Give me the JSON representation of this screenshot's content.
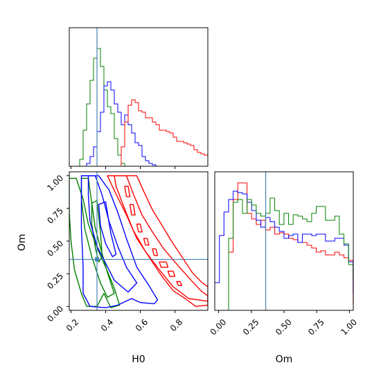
{
  "chart_data": {
    "type": "corner",
    "parameters": [
      "H0",
      "Om"
    ],
    "truth": {
      "H0": 0.35,
      "Om": 0.36
    },
    "truth_color": "#4682b4",
    "series_colors": {
      "red": "#ff0000",
      "blue": "#0000ff",
      "green": "#008000"
    },
    "axes": {
      "H0": {
        "label": "H0",
        "range": [
          0.19,
          0.99
        ],
        "ticks": [
          0.2,
          0.4,
          0.6,
          0.8
        ],
        "tick_labels": [
          "0.2",
          "0.4",
          "0.6",
          "0.8"
        ]
      },
      "Om": {
        "label": "Om",
        "range": [
          -0.03,
          1.03
        ],
        "ticks": [
          0.0,
          0.25,
          0.5,
          0.75,
          1.0
        ],
        "tick_labels": [
          "0.00",
          "0.25",
          "0.50",
          "0.75",
          "1.00"
        ]
      }
    },
    "hist_H0": {
      "bins_start": 0.19,
      "bin_width": 0.02,
      "ymax": 1.0,
      "series": [
        {
          "color": "#008000",
          "values": [
            0.0,
            0.0,
            0.0,
            0.05,
            0.26,
            0.45,
            0.62,
            0.78,
            0.85,
            0.72,
            0.55,
            0.43,
            0.38,
            0.2,
            0.08,
            0.02,
            0.0,
            0.0,
            0.0,
            0.0,
            0.0,
            0.0,
            0.0,
            0.0,
            0.0,
            0.0,
            0.0,
            0.0,
            0.0,
            0.0,
            0.0,
            0.0,
            0.0,
            0.0,
            0.0,
            0.0,
            0.0,
            0.0,
            0.0,
            0.0
          ]
        },
        {
          "color": "#0000ff",
          "values": [
            0.0,
            0.0,
            0.0,
            0.0,
            0.0,
            0.02,
            0.07,
            0.14,
            0.25,
            0.39,
            0.58,
            0.61,
            0.55,
            0.45,
            0.39,
            0.3,
            0.37,
            0.3,
            0.24,
            0.17,
            0.15,
            0.07,
            0.04,
            0.02,
            0.01,
            0.0,
            0.0,
            0.0,
            0.0,
            0.0,
            0.0,
            0.0,
            0.0,
            0.0,
            0.0,
            0.0,
            0.0,
            0.0,
            0.0,
            0.0
          ]
        },
        {
          "color": "#ff0000",
          "values": [
            0.0,
            0.0,
            0.0,
            0.0,
            0.0,
            0.0,
            0.0,
            0.0,
            0.0,
            0.0,
            0.0,
            0.0,
            0.0,
            0.0,
            0.0,
            0.14,
            0.32,
            0.44,
            0.48,
            0.46,
            0.4,
            0.39,
            0.35,
            0.35,
            0.32,
            0.3,
            0.26,
            0.26,
            0.25,
            0.24,
            0.21,
            0.18,
            0.18,
            0.17,
            0.16,
            0.15,
            0.12,
            0.1,
            0.09,
            0.08
          ]
        }
      ]
    },
    "hist_Om": {
      "bins_start": -0.03,
      "bin_width": 0.0353,
      "ymax": 1.0,
      "series": [
        {
          "color": "#ff0000",
          "values": [
            0.0,
            0.0,
            0.0,
            0.42,
            0.8,
            0.92,
            0.92,
            0.7,
            0.66,
            0.62,
            0.65,
            0.58,
            0.6,
            0.55,
            0.56,
            0.55,
            0.52,
            0.51,
            0.49,
            0.49,
            0.47,
            0.45,
            0.42,
            0.43,
            0.4,
            0.4,
            0.42,
            0.4,
            0.38,
            0.36,
            0.05
          ]
        },
        {
          "color": "#0000ff",
          "values": [
            0.2,
            0.54,
            0.71,
            0.8,
            0.86,
            0.85,
            0.84,
            0.78,
            0.72,
            0.65,
            0.6,
            0.67,
            0.64,
            0.6,
            0.57,
            0.52,
            0.54,
            0.55,
            0.49,
            0.55,
            0.55,
            0.54,
            0.55,
            0.55,
            0.5,
            0.5,
            0.52,
            0.52,
            0.47,
            0.35,
            0.12
          ]
        },
        {
          "color": "#008000",
          "values": [
            0.0,
            0.0,
            0.0,
            0.52,
            0.78,
            0.8,
            0.7,
            0.8,
            0.76,
            0.7,
            0.68,
            0.7,
            0.81,
            0.72,
            0.62,
            0.7,
            0.62,
            0.69,
            0.68,
            0.66,
            0.64,
            0.7,
            0.75,
            0.75,
            0.65,
            0.65,
            0.68,
            0.55,
            0.48,
            0.33,
            0.22
          ]
        }
      ]
    },
    "contours_2d": [
      {
        "color": "#008000",
        "levels": [
          {
            "points": [
              [
                0.19,
                0.98
              ],
              [
                0.23,
                0.98
              ],
              [
                0.27,
                0.82
              ],
              [
                0.3,
                0.63
              ],
              [
                0.35,
                0.45
              ],
              [
                0.4,
                0.3
              ],
              [
                0.45,
                0.14
              ],
              [
                0.48,
                0.01
              ],
              [
                0.43,
                -0.01
              ],
              [
                0.39,
                0.1
              ],
              [
                0.35,
                0.0
              ],
              [
                0.29,
                0.0
              ],
              [
                0.26,
                0.1
              ],
              [
                0.22,
                0.28
              ],
              [
                0.2,
                0.5
              ],
              [
                0.19,
                0.72
              ]
            ]
          },
          {
            "points": [
              [
                0.26,
                0.98
              ],
              [
                0.3,
                0.98
              ],
              [
                0.32,
                0.79
              ],
              [
                0.34,
                0.6
              ],
              [
                0.37,
                0.45
              ],
              [
                0.41,
                0.26
              ],
              [
                0.45,
                0.1
              ],
              [
                0.41,
                0.07
              ],
              [
                0.37,
                0.18
              ],
              [
                0.32,
                0.38
              ],
              [
                0.28,
                0.59
              ],
              [
                0.26,
                0.82
              ]
            ]
          },
          {
            "points": [
              [
                0.32,
                0.79
              ],
              [
                0.35,
                0.81
              ],
              [
                0.37,
                0.57
              ],
              [
                0.38,
                0.38
              ],
              [
                0.36,
                0.34
              ],
              [
                0.34,
                0.45
              ],
              [
                0.32,
                0.63
              ]
            ]
          }
        ]
      },
      {
        "color": "#0000ff",
        "levels": [
          {
            "points": [
              [
                0.26,
                1.0
              ],
              [
                0.36,
                1.0
              ],
              [
                0.42,
                0.89
              ],
              [
                0.47,
                0.72
              ],
              [
                0.52,
                0.52
              ],
              [
                0.58,
                0.3
              ],
              [
                0.65,
                0.16
              ],
              [
                0.7,
                0.05
              ],
              [
                0.68,
                0.02
              ],
              [
                0.6,
                0.03
              ],
              [
                0.55,
                0.06
              ],
              [
                0.47,
                0.01
              ],
              [
                0.4,
                -0.01
              ],
              [
                0.31,
                0.0
              ],
              [
                0.27,
                0.1
              ],
              [
                0.27,
                0.3
              ],
              [
                0.26,
                0.6
              ],
              [
                0.26,
                0.85
              ]
            ]
          },
          {
            "points": [
              [
                0.3,
                1.0
              ],
              [
                0.34,
                1.0
              ],
              [
                0.38,
                0.85
              ],
              [
                0.42,
                0.65
              ],
              [
                0.47,
                0.46
              ],
              [
                0.52,
                0.3
              ],
              [
                0.58,
                0.18
              ],
              [
                0.53,
                0.11
              ],
              [
                0.45,
                0.2
              ],
              [
                0.4,
                0.33
              ],
              [
                0.35,
                0.46
              ],
              [
                0.31,
                0.65
              ],
              [
                0.3,
                0.85
              ]
            ]
          },
          {
            "points": [
              [
                0.36,
                0.78
              ],
              [
                0.4,
                0.8
              ],
              [
                0.43,
                0.56
              ],
              [
                0.46,
                0.4
              ],
              [
                0.44,
                0.38
              ],
              [
                0.4,
                0.48
              ],
              [
                0.37,
                0.62
              ]
            ]
          }
        ]
      },
      {
        "color": "#ff0000",
        "levels": [
          {
            "points": [
              [
                0.41,
                1.0
              ],
              [
                0.58,
                1.0
              ],
              [
                0.62,
                0.88
              ],
              [
                0.67,
                0.74
              ],
              [
                0.73,
                0.61
              ],
              [
                0.78,
                0.5
              ],
              [
                0.84,
                0.38
              ],
              [
                0.9,
                0.26
              ],
              [
                0.95,
                0.19
              ],
              [
                0.99,
                0.15
              ],
              [
                0.99,
                0.01
              ],
              [
                0.92,
                0.0
              ],
              [
                0.86,
                0.06
              ],
              [
                0.79,
                0.12
              ],
              [
                0.72,
                0.24
              ],
              [
                0.66,
                0.36
              ],
              [
                0.58,
                0.52
              ],
              [
                0.52,
                0.7
              ],
              [
                0.46,
                0.86
              ]
            ]
          },
          {
            "points": [
              [
                0.45,
                1.0
              ],
              [
                0.52,
                1.0
              ],
              [
                0.56,
                0.86
              ],
              [
                0.61,
                0.7
              ],
              [
                0.67,
                0.57
              ],
              [
                0.73,
                0.45
              ],
              [
                0.8,
                0.34
              ],
              [
                0.88,
                0.22
              ],
              [
                0.95,
                0.12
              ],
              [
                0.99,
                0.08
              ],
              [
                0.99,
                0.04
              ],
              [
                0.88,
                0.06
              ],
              [
                0.79,
                0.15
              ],
              [
                0.71,
                0.28
              ],
              [
                0.63,
                0.42
              ],
              [
                0.56,
                0.58
              ],
              [
                0.5,
                0.78
              ],
              [
                0.46,
                0.92
              ]
            ]
          },
          {
            "points": [
              [
                0.51,
                0.92
              ],
              [
                0.53,
                0.92
              ],
              [
                0.54,
                0.84
              ],
              [
                0.52,
                0.84
              ]
            ]
          },
          {
            "points": [
              [
                0.54,
                0.78
              ],
              [
                0.56,
                0.78
              ],
              [
                0.57,
                0.7
              ],
              [
                0.55,
                0.7
              ]
            ]
          },
          {
            "points": [
              [
                0.58,
                0.63
              ],
              [
                0.6,
                0.63
              ],
              [
                0.61,
                0.57
              ],
              [
                0.59,
                0.57
              ]
            ]
          },
          {
            "points": [
              [
                0.62,
                0.52
              ],
              [
                0.64,
                0.52
              ],
              [
                0.65,
                0.47
              ],
              [
                0.63,
                0.47
              ]
            ]
          },
          {
            "points": [
              [
                0.67,
                0.44
              ],
              [
                0.69,
                0.44
              ],
              [
                0.7,
                0.39
              ],
              [
                0.68,
                0.39
              ]
            ]
          },
          {
            "points": [
              [
                0.71,
                0.34
              ],
              [
                0.75,
                0.34
              ],
              [
                0.76,
                0.3
              ],
              [
                0.72,
                0.3
              ]
            ]
          },
          {
            "points": [
              [
                0.76,
                0.27
              ],
              [
                0.79,
                0.27
              ],
              [
                0.8,
                0.23
              ],
              [
                0.77,
                0.23
              ]
            ]
          },
          {
            "points": [
              [
                0.81,
                0.19
              ],
              [
                0.83,
                0.19
              ],
              [
                0.84,
                0.16
              ],
              [
                0.82,
                0.16
              ]
            ]
          }
        ]
      }
    ]
  }
}
